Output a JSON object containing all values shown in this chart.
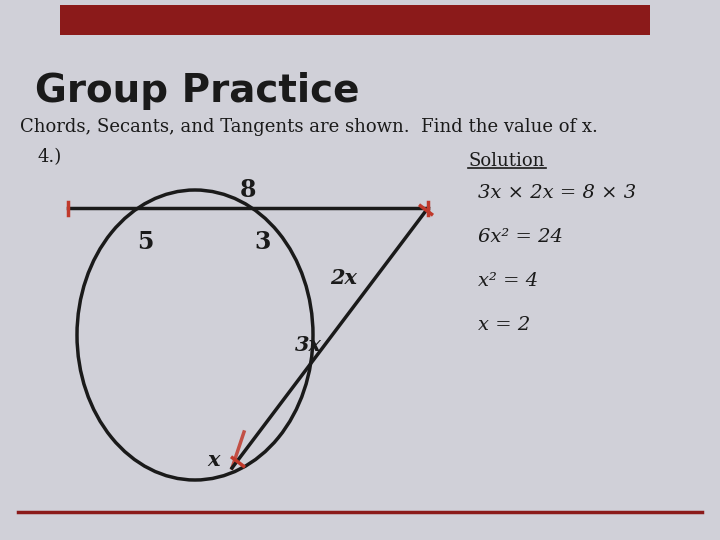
{
  "bg_color": "#d0d0d8",
  "header_rect_color": "#8b1a1a",
  "title_text": "Group Practice",
  "subtitle_text": "Chords, Secants, and Tangents are shown.  Find the value of x.",
  "problem_label": "4.)",
  "solution_label": "Solution",
  "solution_lines": [
    "3x × 2x = 8 × 3",
    "6x² = 24",
    "x² = 4",
    "x = 2"
  ],
  "label_8": "8",
  "label_5": "5",
  "label_3": "3",
  "label_2x": "2x",
  "label_3x": "3x",
  "label_x": "x",
  "red_color": "#c0392b",
  "black_color": "#1a1a1a",
  "bottom_line_color": "#8b1a1a"
}
